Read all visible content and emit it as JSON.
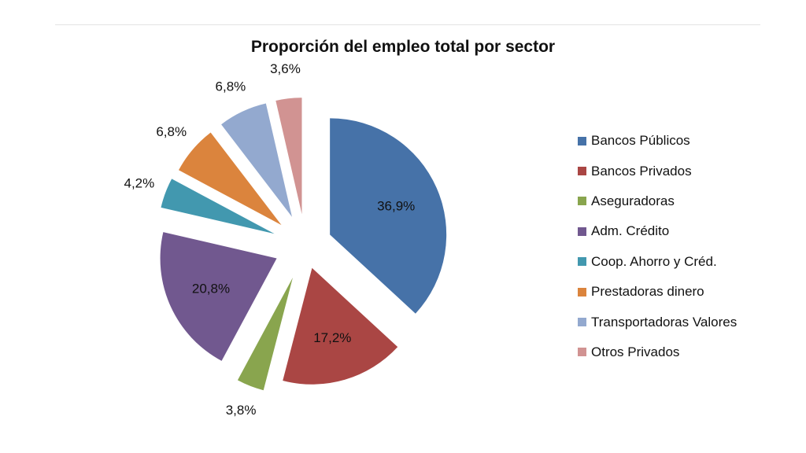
{
  "chart_data": {
    "type": "pie",
    "title": "Proporción del empleo total por sector",
    "legend_position": "right",
    "slices": [
      {
        "name": "Bancos Públicos",
        "value": 36.9,
        "label": "36,9%",
        "color": "#4672A8"
      },
      {
        "name": "Bancos Privados",
        "value": 17.2,
        "label": "17,2%",
        "color": "#AA4644"
      },
      {
        "name": "Aseguradoras",
        "value": 3.8,
        "label": "3,8%",
        "color": "#89A54E"
      },
      {
        "name": "Adm. Crédito",
        "value": 20.8,
        "label": "20,8%",
        "color": "#71588F"
      },
      {
        "name": "Coop. Ahorro y Créd.",
        "value": 4.2,
        "label": "4,2%",
        "color": "#4298AF"
      },
      {
        "name": "Prestadoras dinero",
        "value": 6.8,
        "label": "6,8%",
        "color": "#DB843D"
      },
      {
        "name": "Transportadoras Valores",
        "value": 6.8,
        "label": "6,8%",
        "color": "#93A9CF"
      },
      {
        "name": "Otros Privados",
        "value": 3.6,
        "label": "3,6%",
        "color": "#D19392"
      }
    ]
  }
}
